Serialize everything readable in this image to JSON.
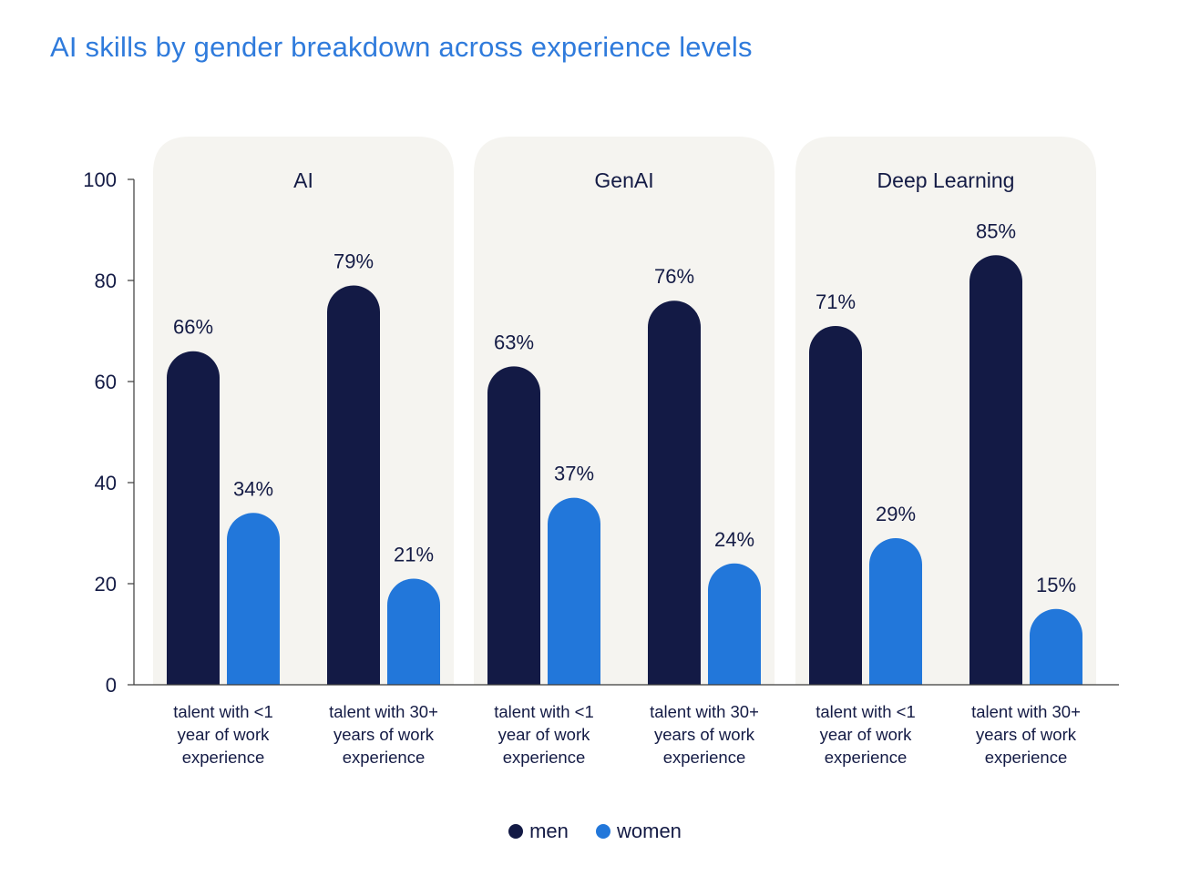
{
  "title": "AI skills by gender breakdown across experience levels",
  "colors": {
    "men": "#131a45",
    "women": "#2277da",
    "panel": "#f5f4f0",
    "text": "#141b45",
    "axis": "#3a3a3a"
  },
  "legend": [
    {
      "label": "men",
      "color": "#131a45"
    },
    {
      "label": "women",
      "color": "#2277da"
    }
  ],
  "chart_data": {
    "type": "bar",
    "title": "AI skills by gender breakdown across experience levels",
    "xlabel": "",
    "ylabel": "",
    "ylim": [
      0,
      100
    ],
    "yticks": [
      0,
      20,
      40,
      60,
      80,
      100
    ],
    "grid": false,
    "legend_position": "bottom",
    "groups": [
      {
        "label": "AI",
        "categories": [
          {
            "label": [
              "talent with <1",
              "year of work",
              "experience"
            ],
            "men": 66,
            "women": 34,
            "men_label": "66%",
            "women_label": "34%"
          },
          {
            "label": [
              "talent with 30+",
              "years of work",
              "experience"
            ],
            "men": 79,
            "women": 21,
            "men_label": "79%",
            "women_label": "21%"
          }
        ]
      },
      {
        "label": "GenAI",
        "categories": [
          {
            "label": [
              "talent with <1",
              "year of work",
              "experience"
            ],
            "men": 63,
            "women": 37,
            "men_label": "63%",
            "women_label": "37%"
          },
          {
            "label": [
              "talent with 30+",
              "years of work",
              "experience"
            ],
            "men": 76,
            "women": 24,
            "men_label": "76%",
            "women_label": "24%"
          }
        ]
      },
      {
        "label": "Deep Learning",
        "categories": [
          {
            "label": [
              "talent with <1",
              "year of work",
              "experience"
            ],
            "men": 71,
            "women": 29,
            "men_label": "71%",
            "women_label": "29%"
          },
          {
            "label": [
              "talent with 30+",
              "years of work",
              "experience"
            ],
            "men": 85,
            "women": 15,
            "men_label": "85%",
            "women_label": "15%"
          }
        ]
      }
    ],
    "series": [
      {
        "name": "men",
        "key": "men"
      },
      {
        "name": "women",
        "key": "women"
      }
    ]
  }
}
